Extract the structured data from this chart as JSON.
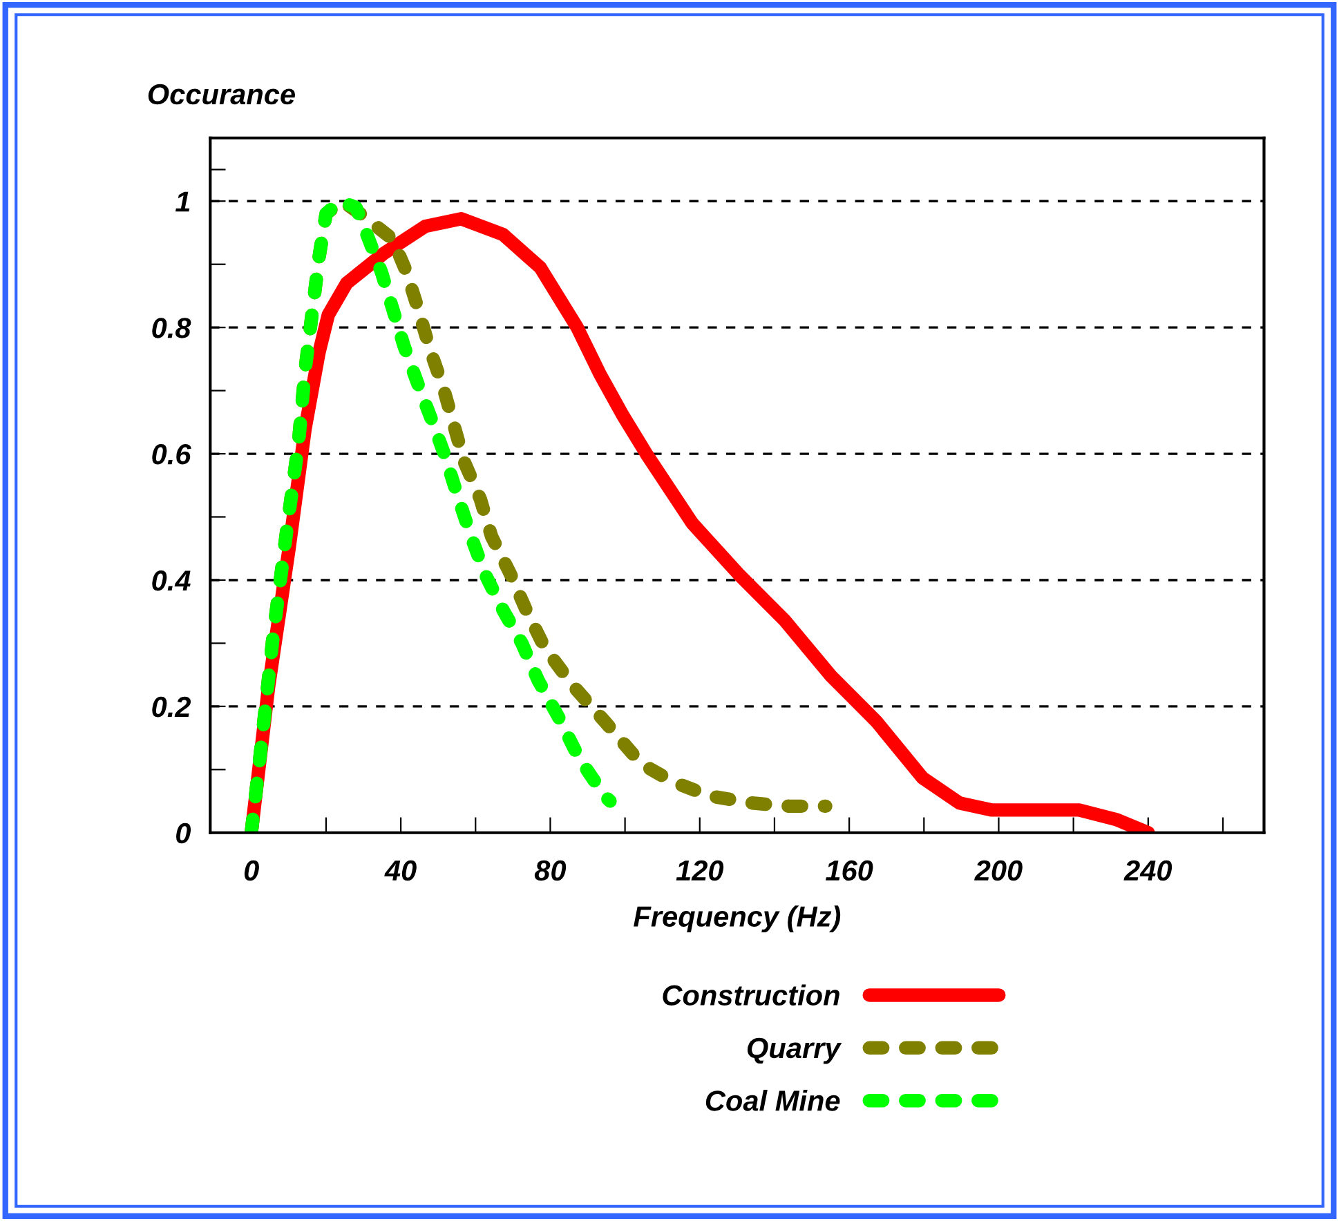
{
  "chart_data": {
    "type": "line",
    "xlabel": "Frequency (Hz)",
    "ylabel": "Occurance",
    "xlim": [
      -11,
      271
    ],
    "ylim": [
      0,
      1.1
    ],
    "xticks": [
      0,
      {
        "value": 20,
        "label": null
      },
      40,
      {
        "value": 60,
        "label": null
      },
      80,
      {
        "value": 100,
        "label": null
      },
      120,
      {
        "value": 140,
        "label": null
      },
      160,
      {
        "value": 180,
        "label": null
      },
      200,
      {
        "value": 220,
        "label": null
      },
      240,
      {
        "value": 260,
        "label": null
      }
    ],
    "yticks": [
      0,
      {
        "value": 0.1,
        "label": null
      },
      0.2,
      {
        "value": 0.3,
        "label": null
      },
      0.4,
      {
        "value": 0.5,
        "label": null
      },
      0.6,
      {
        "value": 0.7,
        "label": null
      },
      0.8,
      {
        "value": 0.9,
        "label": null
      },
      1,
      {
        "value": 1.05,
        "label": null
      }
    ],
    "grid": "y",
    "legend": "bottom",
    "marker": "none",
    "series": [
      {
        "name": "Construction",
        "color": "#ff0000",
        "line_style": "solid",
        "x": [
          0,
          4.6,
          10.1,
          14.4,
          18.1,
          20.6,
          25.5,
          35.4,
          46.5,
          56.2,
          67.4,
          77.3,
          87.2,
          93.3,
          99.5,
          105.7,
          118,
          130.3,
          142.6,
          155,
          167.3,
          179.6,
          189.5,
          198,
          221.5,
          231.4,
          240
        ],
        "values": [
          0,
          0.23,
          0.45,
          0.64,
          0.76,
          0.82,
          0.87,
          0.917,
          0.96,
          0.972,
          0.947,
          0.895,
          0.8,
          0.726,
          0.66,
          0.6,
          0.49,
          0.41,
          0.337,
          0.249,
          0.176,
          0.087,
          0.047,
          0.036,
          0.036,
          0.021,
          0
        ]
      },
      {
        "name": "Quarry",
        "color": "#808000",
        "line_style": "dashed",
        "x": [
          0,
          2.7,
          5.8,
          9.5,
          12.6,
          14.4,
          18.1,
          20,
          24.3,
          29.2,
          37.8,
          41.5,
          44.6,
          47.7,
          51.4,
          57,
          61.3,
          64.3,
          69.3,
          73.6,
          78.5,
          85.9,
          94.6,
          104.4,
          113,
          122.9,
          134,
          143.9,
          153.7
        ],
        "values": [
          0,
          0.14,
          0.31,
          0.48,
          0.616,
          0.733,
          0.91,
          0.98,
          1.0,
          0.98,
          0.94,
          0.888,
          0.83,
          0.767,
          0.704,
          0.587,
          0.528,
          0.469,
          0.41,
          0.352,
          0.293,
          0.234,
          0.176,
          0.109,
          0.08,
          0.058,
          0.047,
          0.042,
          0.042
        ]
      },
      {
        "name": "Coal Mine",
        "color": "#00ff00",
        "line_style": "dashed",
        "x": [
          0,
          2.7,
          5.8,
          9.5,
          12.6,
          14.4,
          18.1,
          20,
          23.7,
          28,
          31,
          34.8,
          37.8,
          40.9,
          44.6,
          48.3,
          52,
          55.1,
          58.8,
          62.5,
          67.4,
          72.4,
          76.7,
          82.2,
          87.8,
          94.6,
          96
        ],
        "values": [
          0,
          0.14,
          0.31,
          0.48,
          0.616,
          0.733,
          0.91,
          0.98,
          1.0,
          0.99,
          0.946,
          0.888,
          0.83,
          0.77,
          0.71,
          0.653,
          0.594,
          0.535,
          0.469,
          0.41,
          0.352,
          0.3,
          0.242,
          0.183,
          0.117,
          0.058,
          0.05
        ]
      }
    ]
  }
}
